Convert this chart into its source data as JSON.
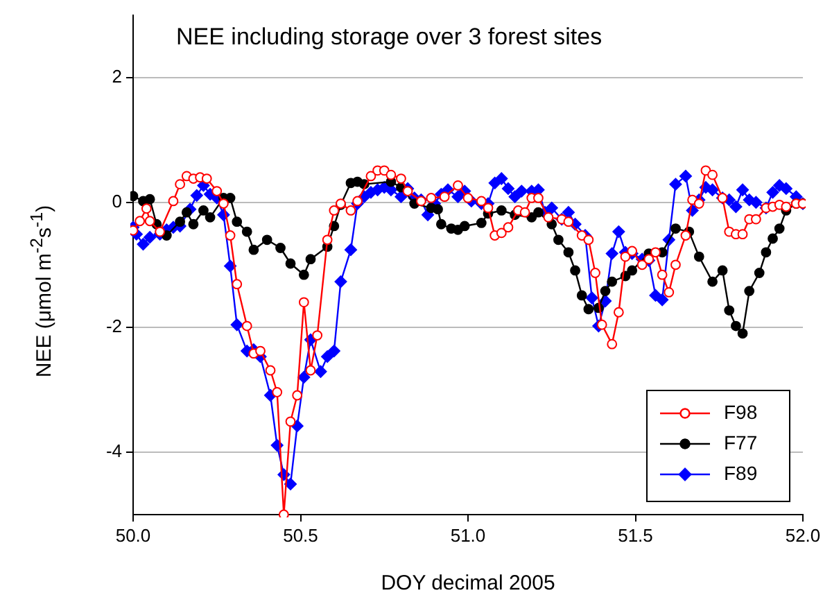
{
  "chart_data": {
    "type": "line",
    "title": "NEE including storage over 3 forest sites",
    "xlabel": "DOY decimal 2005",
    "ylabel": "NEE (μmol m$^{-2}$s$^{-1}$)",
    "xlim": [
      50,
      52
    ],
    "xticks": [
      {
        "value": 50,
        "label": "50.0"
      },
      {
        "value": 50.5,
        "label": "50.5"
      },
      {
        "value": 51,
        "label": "51.0"
      },
      {
        "value": 51.5,
        "label": "51.5"
      },
      {
        "value": 52,
        "label": "52.0"
      }
    ],
    "ylim": [
      -5,
      3
    ],
    "yticks": [
      -4,
      -2,
      0,
      2
    ],
    "grid": "y",
    "legend": "bottom right",
    "line_style": "solid",
    "series": [
      {
        "name": "F98",
        "color": "#ff0000",
        "marker": "circle",
        "x": [
          50.0,
          50.02,
          50.04,
          50.05,
          50.08,
          50.12,
          50.14,
          50.16,
          50.18,
          50.2,
          50.22,
          50.25,
          50.27,
          50.29,
          50.31,
          50.34,
          50.36,
          50.38,
          50.41,
          50.43,
          50.45,
          50.47,
          50.49,
          50.51,
          50.53,
          50.55,
          50.58,
          50.6,
          50.62,
          50.65,
          50.67,
          50.71,
          50.73,
          50.75,
          50.77,
          50.8,
          50.82,
          50.86,
          50.89,
          50.93,
          50.97,
          51.0,
          51.04,
          51.06,
          51.08,
          51.1,
          51.12,
          51.15,
          51.17,
          51.19,
          51.21,
          51.24,
          51.28,
          51.3,
          51.34,
          51.36,
          51.38,
          51.4,
          51.43,
          51.45,
          51.47,
          51.49,
          51.52,
          51.54,
          51.56,
          51.58,
          51.6,
          51.62,
          51.65,
          51.67,
          51.69,
          51.71,
          51.73,
          51.76,
          51.78,
          51.8,
          51.82,
          51.84,
          51.86,
          51.89,
          51.91,
          51.93,
          51.95,
          51.98,
          52.0
        ],
        "values": [
          -0.45,
          -0.3,
          -0.1,
          -0.3,
          -0.47,
          0.02,
          0.29,
          0.42,
          0.38,
          0.4,
          0.38,
          0.18,
          -0.02,
          -0.53,
          -1.31,
          -1.98,
          -2.42,
          -2.38,
          -2.69,
          -3.04,
          -5.0,
          -3.51,
          -3.09,
          -1.6,
          -2.69,
          -2.13,
          -0.6,
          -0.13,
          -0.02,
          -0.13,
          0.02,
          0.42,
          0.51,
          0.51,
          0.44,
          0.38,
          0.18,
          0.02,
          0.07,
          0.09,
          0.27,
          0.07,
          0.02,
          -0.09,
          -0.53,
          -0.49,
          -0.4,
          -0.13,
          -0.16,
          0.07,
          0.07,
          -0.24,
          -0.27,
          -0.31,
          -0.53,
          -0.6,
          -1.13,
          -1.96,
          -2.27,
          -1.76,
          -0.87,
          -0.78,
          -1.0,
          -0.91,
          -0.8,
          -1.16,
          -1.44,
          -1.0,
          -0.53,
          0.04,
          -0.02,
          0.51,
          0.44,
          0.07,
          -0.47,
          -0.51,
          -0.51,
          -0.27,
          -0.27,
          -0.09,
          -0.07,
          -0.04,
          -0.07,
          -0.02,
          -0.02
        ]
      },
      {
        "name": "F77",
        "color": "#000000",
        "marker": "circle",
        "x": [
          50.0,
          50.03,
          50.05,
          50.07,
          50.1,
          50.14,
          50.16,
          50.18,
          50.21,
          50.23,
          50.27,
          50.29,
          50.31,
          50.34,
          50.36,
          50.4,
          50.44,
          50.47,
          50.51,
          50.53,
          50.58,
          50.6,
          50.62,
          50.65,
          50.67,
          50.69,
          50.77,
          50.8,
          50.84,
          50.89,
          50.91,
          50.92,
          50.95,
          50.97,
          50.99,
          51.04,
          51.06,
          51.1,
          51.14,
          51.19,
          51.21,
          51.25,
          51.27,
          51.3,
          51.32,
          51.34,
          51.36,
          51.39,
          51.41,
          51.43,
          51.47,
          51.49,
          51.54,
          51.58,
          51.62,
          51.66,
          51.69,
          51.73,
          51.76,
          51.78,
          51.8,
          51.82,
          51.84,
          51.87,
          51.89,
          51.91,
          51.93,
          51.95,
          51.98,
          52.0
        ],
        "values": [
          0.1,
          0.02,
          0.05,
          -0.35,
          -0.53,
          -0.31,
          -0.16,
          -0.35,
          -0.13,
          -0.24,
          0.07,
          0.07,
          -0.31,
          -0.47,
          -0.76,
          -0.6,
          -0.73,
          -0.98,
          -1.16,
          -0.91,
          -0.71,
          -0.38,
          -0.04,
          0.31,
          0.33,
          0.29,
          0.33,
          0.24,
          -0.02,
          -0.09,
          -0.11,
          -0.35,
          -0.42,
          -0.44,
          -0.38,
          -0.33,
          -0.18,
          -0.13,
          -0.2,
          -0.24,
          -0.16,
          -0.35,
          -0.6,
          -0.8,
          -1.09,
          -1.49,
          -1.71,
          -1.69,
          -1.42,
          -1.27,
          -1.18,
          -1.09,
          -0.82,
          -0.8,
          -0.42,
          -0.47,
          -0.87,
          -1.27,
          -1.09,
          -1.73,
          -1.98,
          -2.1,
          -1.42,
          -1.13,
          -0.8,
          -0.58,
          -0.42,
          -0.13,
          -0.02,
          -0.02
        ]
      },
      {
        "name": "F89",
        "color": "#0000ff",
        "marker": "diamond",
        "x": [
          50.0,
          50.01,
          50.03,
          50.05,
          50.08,
          50.1,
          50.12,
          50.14,
          50.17,
          50.19,
          50.21,
          50.23,
          50.25,
          50.27,
          50.29,
          50.31,
          50.34,
          50.36,
          50.38,
          50.41,
          50.43,
          50.45,
          50.47,
          50.49,
          50.51,
          50.53,
          50.56,
          50.58,
          50.6,
          50.62,
          50.65,
          50.67,
          50.69,
          50.71,
          50.73,
          50.75,
          50.77,
          50.8,
          50.82,
          50.84,
          50.86,
          50.88,
          50.9,
          50.92,
          50.94,
          50.97,
          50.99,
          51.01,
          51.04,
          51.06,
          51.08,
          51.1,
          51.12,
          51.14,
          51.16,
          51.19,
          51.21,
          51.23,
          51.25,
          51.28,
          51.3,
          51.32,
          51.35,
          51.37,
          51.39,
          51.41,
          51.43,
          51.45,
          51.47,
          51.49,
          51.52,
          51.54,
          51.56,
          51.58,
          51.6,
          51.62,
          51.65,
          51.67,
          51.69,
          51.71,
          51.73,
          51.76,
          51.78,
          51.8,
          51.82,
          51.84,
          51.86,
          51.89,
          51.91,
          51.93,
          51.95,
          51.98,
          52.0
        ],
        "values": [
          -0.4,
          -0.51,
          -0.67,
          -0.56,
          -0.51,
          -0.44,
          -0.4,
          -0.38,
          -0.11,
          0.11,
          0.27,
          0.13,
          0.07,
          -0.2,
          -1.02,
          -1.96,
          -2.38,
          -2.36,
          -2.47,
          -3.09,
          -3.89,
          -4.36,
          -4.51,
          -3.58,
          -2.8,
          -2.2,
          -2.71,
          -2.47,
          -2.38,
          -1.27,
          -0.76,
          -0.02,
          0.09,
          0.16,
          0.2,
          0.24,
          0.2,
          0.09,
          0.22,
          0.07,
          0.04,
          -0.2,
          -0.02,
          0.13,
          0.2,
          0.09,
          0.18,
          0.02,
          -0.02,
          -0.02,
          0.31,
          0.38,
          0.22,
          0.09,
          0.18,
          0.18,
          0.2,
          -0.16,
          -0.09,
          -0.27,
          -0.16,
          -0.35,
          -0.53,
          -1.53,
          -1.98,
          -1.58,
          -0.82,
          -0.47,
          -0.8,
          -0.82,
          -0.91,
          -0.93,
          -1.49,
          -1.56,
          -0.6,
          0.29,
          0.42,
          -0.13,
          0.04,
          0.24,
          0.2,
          0.07,
          0.04,
          -0.07,
          0.2,
          0.04,
          0,
          -0.09,
          0.16,
          0.27,
          0.22,
          0.09,
          -0.02
        ]
      }
    ]
  }
}
